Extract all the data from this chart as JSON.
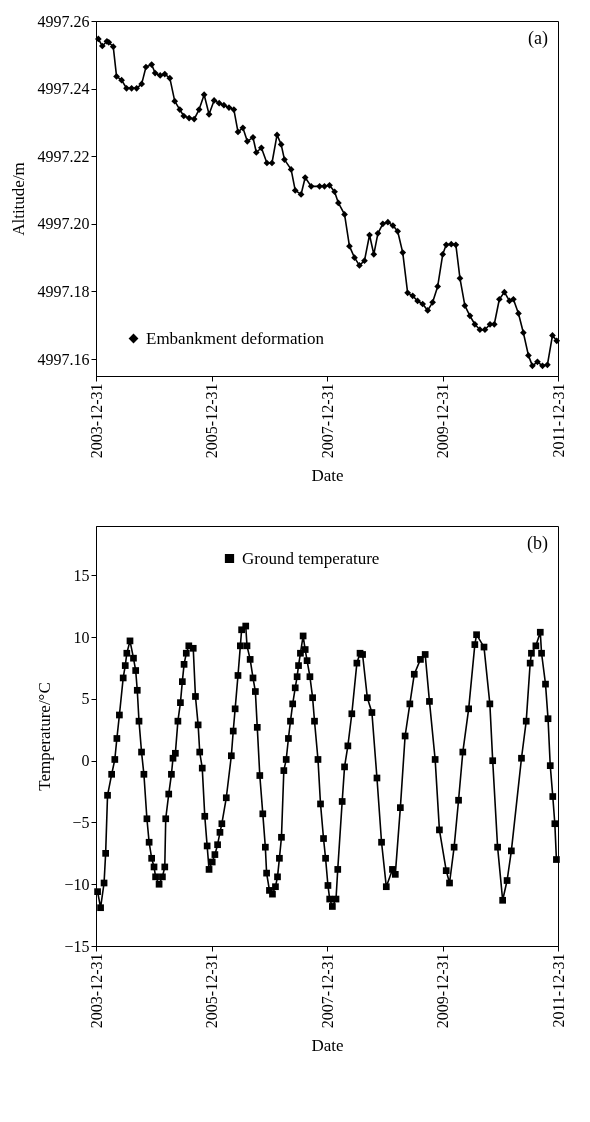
{
  "chart_data": [
    {
      "type": "line",
      "xlabel": "Date",
      "ylabel": "Altitude/m",
      "annotations": [
        "(a)"
      ],
      "legend": "bottom left",
      "marker": "diamond",
      "line_style": "solid",
      "grid": false,
      "xlim": [
        "2003-12-31",
        "2011-12-31"
      ],
      "xticks": [
        "2003-12-31",
        "2005-12-31",
        "2007-12-31",
        "2009-12-31",
        "2011-12-31"
      ],
      "ylim": [
        4997.155,
        4997.26
      ],
      "yticks": [
        {
          "value": 4997.16,
          "label": "4997.16"
        },
        {
          "value": 4997.18,
          "label": "4997.18"
        },
        {
          "value": 4997.2,
          "label": "4997.20"
        },
        {
          "value": 4997.22,
          "label": "4997.22"
        },
        {
          "value": 4997.24,
          "label": "4997.24"
        },
        {
          "value": 4997.26,
          "label": "4997.26"
        }
      ],
      "x": [
        "2004-01-15",
        "2004-02-09",
        "2004-03-09",
        "2004-03-21",
        "2004-04-18",
        "2004-05-09",
        "2004-06-10",
        "2004-07-11",
        "2004-08-12",
        "2004-09-13",
        "2004-10-15",
        "2004-11-11",
        "2004-12-17",
        "2005-01-08",
        "2005-02-09",
        "2005-03-10",
        "2005-04-11",
        "2005-05-12",
        "2005-06-13",
        "2005-07-08",
        "2005-08-11",
        "2005-09-12",
        "2005-10-13",
        "2005-11-14",
        "2005-12-15",
        "2006-01-16",
        "2006-02-17",
        "2006-03-19",
        "2006-04-20",
        "2006-05-21",
        "2006-06-16",
        "2006-07-17",
        "2006-08-14",
        "2006-09-19",
        "2006-10-10",
        "2006-11-11",
        "2006-12-16",
        "2007-01-17",
        "2007-02-18",
        "2007-03-16",
        "2007-04-06",
        "2007-05-18",
        "2007-06-13",
        "2007-07-20",
        "2007-08-15",
        "2007-09-22",
        "2007-11-14",
        "2007-12-15",
        "2008-01-16",
        "2008-02-17",
        "2008-03-12",
        "2008-04-20",
        "2008-05-21",
        "2008-06-22",
        "2008-07-23",
        "2008-08-24",
        "2008-09-25",
        "2008-10-22",
        "2008-11-17",
        "2008-12-18",
        "2009-01-19",
        "2009-02-20",
        "2009-03-22",
        "2009-04-23",
        "2009-05-24",
        "2009-06-25",
        "2009-07-26",
        "2009-08-27",
        "2009-09-28",
        "2009-10-29",
        "2009-11-30",
        "2010-01-01",
        "2010-01-23",
        "2010-02-24",
        "2010-03-25",
        "2010-04-20",
        "2010-05-21",
        "2010-06-22",
        "2010-07-23",
        "2010-08-24",
        "2010-09-25",
        "2010-10-27",
        "2010-11-23",
        "2010-12-25",
        "2011-01-26",
        "2011-02-27",
        "2011-03-24",
        "2011-04-25",
        "2011-05-26",
        "2011-06-27",
        "2011-07-22",
        "2011-08-23",
        "2011-09-24",
        "2011-10-25",
        "2011-11-26",
        "2011-12-23"
      ],
      "series": [
        {
          "name": "Embankment deformation",
          "color": "#000000",
          "values": [
            4997.2547,
            4997.2526,
            4997.254,
            4997.2537,
            4997.2524,
            4997.2436,
            4997.2425,
            4997.2401,
            4997.2401,
            4997.2401,
            4997.2414,
            4997.2464,
            4997.2471,
            4997.2446,
            4997.2439,
            4997.2443,
            4997.2431,
            4997.2363,
            4997.2338,
            4997.2319,
            4997.2313,
            4997.231,
            4997.2338,
            4997.2382,
            4997.2324,
            4997.2365,
            4997.2357,
            4997.2351,
            4997.2344,
            4997.2338,
            4997.2272,
            4997.2284,
            4997.2244,
            4997.2256,
            4997.2211,
            4997.2225,
            4997.218,
            4997.218,
            4997.2263,
            4997.2235,
            4997.219,
            4997.2161,
            4997.2099,
            4997.2087,
            4997.2137,
            4997.2111,
            4997.2111,
            4997.2111,
            4997.2114,
            4997.2095,
            4997.2062,
            4997.2028,
            4997.1934,
            4997.19,
            4997.1877,
            4997.1891,
            4997.1967,
            4997.191,
            4997.1972,
            4997.2,
            4997.2005,
            4997.1995,
            4997.1978,
            4997.1915,
            4997.1796,
            4997.1787,
            4997.1772,
            4997.1763,
            4997.1744,
            4997.1768,
            4997.1815,
            4997.191,
            4997.1938,
            4997.194,
            4997.1938,
            4997.1839,
            4997.1758,
            4997.1728,
            4997.1703,
            4997.1687,
            4997.1687,
            4997.1703,
            4997.1703,
            4997.1777,
            4997.1798,
            4997.1772,
            4997.1777,
            4997.1735,
            4997.1678,
            4997.1611,
            4997.158,
            4997.1592,
            4997.158,
            4997.1583,
            4997.167,
            4997.1654
          ]
        }
      ]
    },
    {
      "type": "line",
      "xlabel": "Date",
      "ylabel": "Temperature/°C",
      "annotations": [
        "(b)"
      ],
      "legend": "top",
      "marker": "square",
      "line_style": "solid",
      "grid": false,
      "xlim": [
        "2003-12-31",
        "2011-12-31"
      ],
      "xticks": [
        "2003-12-31",
        "2005-12-31",
        "2007-12-31",
        "2009-12-31",
        "2011-12-31"
      ],
      "ylim": [
        -15,
        19
      ],
      "yticks": [
        -15,
        -10,
        -5,
        0,
        5,
        10,
        15
      ],
      "x": [
        "2004-01-10",
        "2004-01-29",
        "2004-02-20",
        "2004-03-01",
        "2004-03-13",
        "2004-04-08",
        "2004-04-28",
        "2004-05-11",
        "2004-05-27",
        "2004-06-20",
        "2004-07-03",
        "2004-07-13",
        "2004-08-02",
        "2004-08-24",
        "2004-09-07",
        "2004-09-17",
        "2004-09-28",
        "2004-10-14",
        "2004-10-29",
        "2004-11-17",
        "2004-12-01",
        "2004-12-17",
        "2005-01-01",
        "2005-01-11",
        "2005-02-02",
        "2005-02-23",
        "2005-03-10",
        "2005-03-16",
        "2005-04-04",
        "2005-04-21",
        "2005-05-01",
        "2005-05-16",
        "2005-06-01",
        "2005-06-17",
        "2005-06-29",
        "2005-07-10",
        "2005-07-24",
        "2005-08-09",
        "2005-09-06",
        "2005-09-20",
        "2005-10-07",
        "2005-10-17",
        "2005-11-02",
        "2005-11-18",
        "2005-12-03",
        "2005-12-15",
        "2006-01-04",
        "2006-01-21",
        "2006-02-07",
        "2006-02-22",
        "2006-03-06",
        "2006-04-03",
        "2006-05-05",
        "2006-05-17",
        "2006-05-29",
        "2006-06-16",
        "2006-07-01",
        "2006-07-09",
        "2006-08-04",
        "2006-08-12",
        "2006-09-01",
        "2006-09-19",
        "2006-10-04",
        "2006-10-16",
        "2006-11-01",
        "2006-11-20",
        "2006-12-06",
        "2006-12-14",
        "2007-01-01",
        "2007-01-20",
        "2007-02-08",
        "2007-02-21",
        "2007-03-05",
        "2007-03-18",
        "2007-04-02",
        "2007-04-17",
        "2007-05-01",
        "2007-05-14",
        "2007-05-28",
        "2007-06-13",
        "2007-06-25",
        "2007-07-04",
        "2007-07-16",
        "2007-08-02",
        "2007-08-15",
        "2007-08-27",
        "2007-09-14",
        "2007-10-01",
        "2007-10-13",
        "2007-11-04",
        "2007-11-20",
        "2007-12-09",
        "2007-12-22",
        "2008-01-06",
        "2008-01-17",
        "2008-02-03",
        "2008-02-26",
        "2008-03-08",
        "2008-04-05",
        "2008-04-20",
        "2008-05-11",
        "2008-06-05",
        "2008-07-07",
        "2008-07-27",
        "2008-08-12",
        "2008-09-11",
        "2008-10-10",
        "2008-11-11",
        "2008-12-10",
        "2009-01-09",
        "2009-02-17",
        "2009-03-07",
        "2009-04-08",
        "2009-05-08",
        "2009-06-07",
        "2009-07-05",
        "2009-08-13",
        "2009-09-12",
        "2009-10-09",
        "2009-11-14",
        "2009-12-11",
        "2010-01-23",
        "2010-02-13",
        "2010-03-14",
        "2010-04-11",
        "2010-05-08",
        "2010-06-14",
        "2010-07-23",
        "2010-08-03",
        "2010-09-19",
        "2010-10-26",
        "2010-11-13",
        "2010-12-14",
        "2011-01-15",
        "2011-02-12",
        "2011-03-11",
        "2011-05-14",
        "2011-06-13",
        "2011-07-08",
        "2011-07-16",
        "2011-08-13",
        "2011-09-10",
        "2011-09-18",
        "2011-10-13",
        "2011-10-29",
        "2011-11-12",
        "2011-11-28",
        "2011-12-11",
        "2011-12-21"
      ],
      "series": [
        {
          "name": "Ground temperature",
          "color": "#000000",
          "values": [
            -10.6,
            -11.9,
            -9.9,
            -7.5,
            -2.8,
            -1.1,
            0.1,
            1.8,
            3.7,
            6.7,
            7.7,
            8.7,
            9.7,
            8.3,
            7.3,
            5.7,
            3.2,
            0.7,
            -1.1,
            -4.7,
            -6.6,
            -7.9,
            -8.6,
            -9.4,
            -10.0,
            -9.4,
            -8.6,
            -4.7,
            -2.7,
            -1.1,
            0.2,
            0.6,
            3.2,
            4.7,
            6.4,
            7.8,
            8.7,
            9.3,
            9.1,
            5.2,
            2.9,
            0.7,
            -0.6,
            -4.5,
            -6.9,
            -8.8,
            -8.2,
            -7.6,
            -6.8,
            -5.8,
            -5.1,
            -3.0,
            0.4,
            2.4,
            4.2,
            6.9,
            9.3,
            10.6,
            10.9,
            9.3,
            8.2,
            6.7,
            5.6,
            2.7,
            -1.2,
            -4.3,
            -7.0,
            -9.1,
            -10.5,
            -10.8,
            -10.2,
            -9.4,
            -7.9,
            -6.2,
            -0.8,
            0.1,
            1.8,
            3.2,
            4.6,
            5.9,
            6.8,
            7.7,
            8.7,
            10.1,
            9.0,
            8.1,
            6.8,
            5.1,
            3.2,
            0.1,
            -3.5,
            -6.3,
            -7.9,
            -10.1,
            -11.2,
            -11.8,
            -11.2,
            -8.8,
            -3.3,
            -0.5,
            1.2,
            3.8,
            7.9,
            8.7,
            8.6,
            5.1,
            3.9,
            -1.4,
            -6.6,
            -10.2,
            -8.8,
            -9.2,
            -3.8,
            2.0,
            4.6,
            7.0,
            8.2,
            8.6,
            4.8,
            0.1,
            -5.6,
            -8.9,
            -9.9,
            -7.0,
            -3.2,
            0.7,
            4.2,
            9.4,
            10.2,
            9.2,
            4.6,
            0.0,
            -7.0,
            -11.3,
            -9.7,
            -7.3,
            0.2,
            3.2,
            7.9,
            8.7,
            9.3,
            10.4,
            8.7,
            6.2,
            3.4,
            -0.4,
            -2.9,
            -5.1,
            -8.0
          ]
        }
      ]
    }
  ]
}
